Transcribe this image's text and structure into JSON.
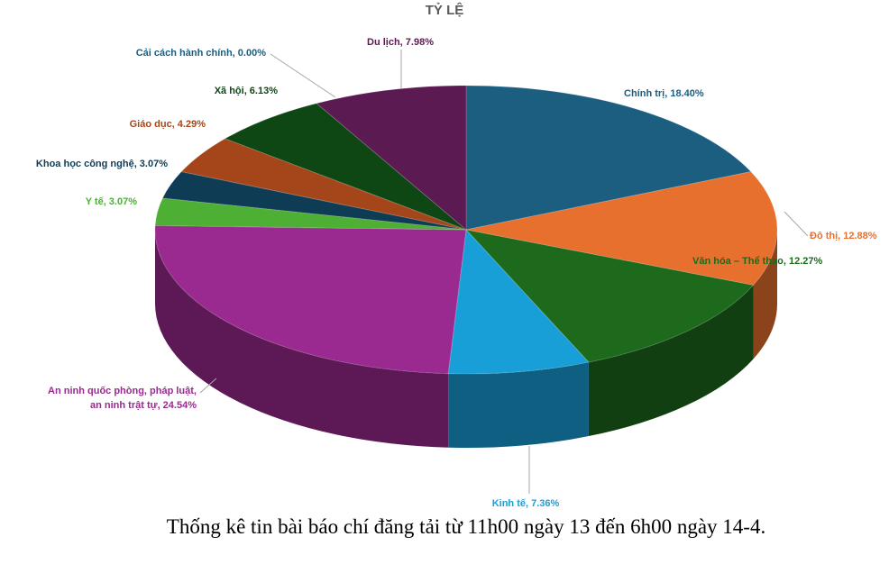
{
  "chart_data": {
    "type": "pie3d",
    "title": "TỶ LỆ",
    "caption": "Thống kê tin bài báo chí đăng tải từ 11h00 ngày 13 đến 6h00 ngày 14-4.",
    "values": [
      18.4,
      12.88,
      12.27,
      7.36,
      24.54,
      3.07,
      3.07,
      4.29,
      6.13,
      0.0,
      7.98
    ],
    "value_labels": [
      "Chính trị, 18.40%",
      "Đô thị, 12.88%",
      "Văn hóa – Thể thao, 12.27%",
      "Kinh tế, 7.36%",
      "An ninh quốc phòng, pháp luật,\nan ninh trật tự, 24.54%",
      "Y tế, 3.07%",
      "Khoa học công nghệ, 3.07%",
      "Giáo dục, 4.29%",
      "Xã hội, 6.13%",
      "Cải cách hành chính, 0.00%",
      "Du lịch, 7.98%"
    ],
    "colors": [
      "#1b5e80",
      "#e8702e",
      "#1d6a1d",
      "#189fd8",
      "#9a2a90",
      "#4daf34",
      "#0f3c55",
      "#a4461a",
      "#0f4714",
      "#8a8a8a",
      "#5c1a52"
    ]
  }
}
